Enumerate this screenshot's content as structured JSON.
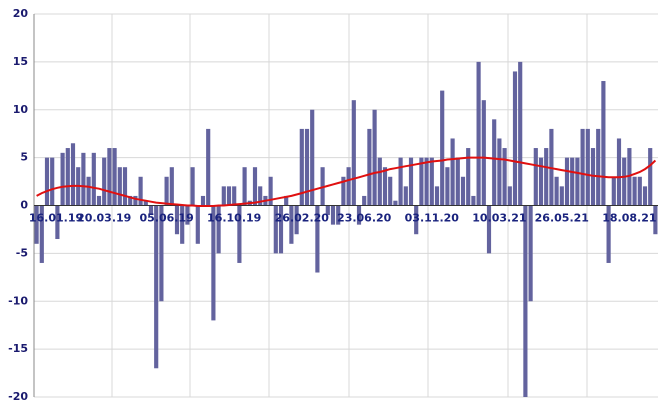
{
  "chart_data": {
    "type": "bar",
    "categories": [
      "16.01.19",
      null,
      null,
      null,
      null,
      null,
      null,
      null,
      null,
      null,
      null,
      null,
      null,
      "20.03.19",
      null,
      null,
      null,
      null,
      null,
      null,
      null,
      null,
      null,
      null,
      null,
      "05.06.19",
      null,
      null,
      null,
      null,
      null,
      null,
      null,
      null,
      null,
      null,
      null,
      null,
      "16.10.19",
      null,
      null,
      null,
      null,
      null,
      null,
      null,
      null,
      null,
      null,
      null,
      null,
      "26.02.20",
      null,
      null,
      null,
      null,
      null,
      null,
      null,
      null,
      null,
      null,
      null,
      "23.06.20",
      null,
      null,
      null,
      null,
      null,
      null,
      null,
      null,
      null,
      null,
      null,
      null,
      "03.11.20",
      null,
      null,
      null,
      null,
      null,
      null,
      null,
      null,
      null,
      null,
      null,
      null,
      "10.03.21",
      null,
      null,
      null,
      null,
      null,
      null,
      null,
      null,
      null,
      null,
      null,
      "26.05.21",
      null,
      null,
      null,
      null,
      null,
      null,
      null,
      null,
      null,
      null,
      null,
      null,
      "18.08.21",
      null,
      null,
      null,
      null,
      null
    ],
    "series": [
      {
        "type": "bar",
        "color": "#63639e",
        "values": [
          -4,
          -6,
          5,
          5,
          -3.5,
          5.5,
          6,
          6.5,
          4,
          5.5,
          3,
          5.5,
          1,
          5,
          6,
          6,
          4,
          4,
          1,
          1,
          3,
          0.5,
          -1,
          -17,
          -10,
          3,
          4,
          -3,
          -4,
          -2,
          4,
          -4,
          1,
          8,
          -12,
          -5,
          2,
          2,
          2,
          -6,
          4,
          0.5,
          4,
          2,
          1,
          3,
          -5,
          -5,
          1,
          -4,
          -3,
          8,
          8,
          10,
          -7,
          4,
          -1,
          -2,
          -2,
          3,
          4,
          11,
          -2,
          1,
          8,
          10,
          5,
          4,
          3,
          0.5,
          5,
          2,
          5,
          -3,
          5,
          5,
          5,
          2,
          12,
          4,
          7,
          5,
          3,
          6,
          1,
          15,
          11,
          -5,
          9,
          7,
          6,
          2,
          14,
          15,
          -20,
          -10,
          6,
          5,
          6,
          8,
          3,
          2,
          5,
          5,
          5,
          8,
          8,
          6,
          8,
          13,
          -6,
          3,
          7,
          5,
          6,
          3,
          3,
          2,
          6,
          -3
        ]
      },
      {
        "type": "line",
        "color": "#e01010",
        "values": [
          1.0,
          1.3,
          1.5,
          1.7,
          1.85,
          1.95,
          2.0,
          2.05,
          2.05,
          2.0,
          1.95,
          1.85,
          1.75,
          1.6,
          1.45,
          1.3,
          1.15,
          1.0,
          0.85,
          0.7,
          0.6,
          0.5,
          0.4,
          0.3,
          0.25,
          0.2,
          0.15,
          0.1,
          0.05,
          0.0,
          0.0,
          -0.05,
          -0.05,
          -0.05,
          -0.05,
          0.0,
          0.0,
          0.05,
          0.1,
          0.15,
          0.2,
          0.25,
          0.3,
          0.4,
          0.5,
          0.6,
          0.7,
          0.8,
          0.9,
          1.0,
          1.15,
          1.3,
          1.45,
          1.6,
          1.75,
          1.9,
          2.05,
          2.2,
          2.35,
          2.5,
          2.65,
          2.8,
          2.95,
          3.1,
          3.25,
          3.4,
          3.5,
          3.65,
          3.8,
          3.9,
          4.0,
          4.1,
          4.2,
          4.3,
          4.4,
          4.5,
          4.6,
          4.65,
          4.7,
          4.8,
          4.85,
          4.9,
          4.95,
          5.0,
          5.0,
          5.0,
          5.0,
          4.95,
          4.9,
          4.85,
          4.8,
          4.7,
          4.6,
          4.5,
          4.4,
          4.3,
          4.2,
          4.1,
          4.0,
          3.9,
          3.8,
          3.7,
          3.6,
          3.5,
          3.4,
          3.3,
          3.2,
          3.1,
          3.05,
          3.0,
          2.95,
          2.95,
          2.95,
          3.0,
          3.1,
          3.3,
          3.5,
          3.8,
          4.2,
          4.7
        ]
      }
    ],
    "ylim": [
      -20,
      20
    ],
    "yticks": [
      -20,
      -15,
      -10,
      -5,
      0,
      5,
      10,
      15,
      20
    ],
    "grid": true
  }
}
